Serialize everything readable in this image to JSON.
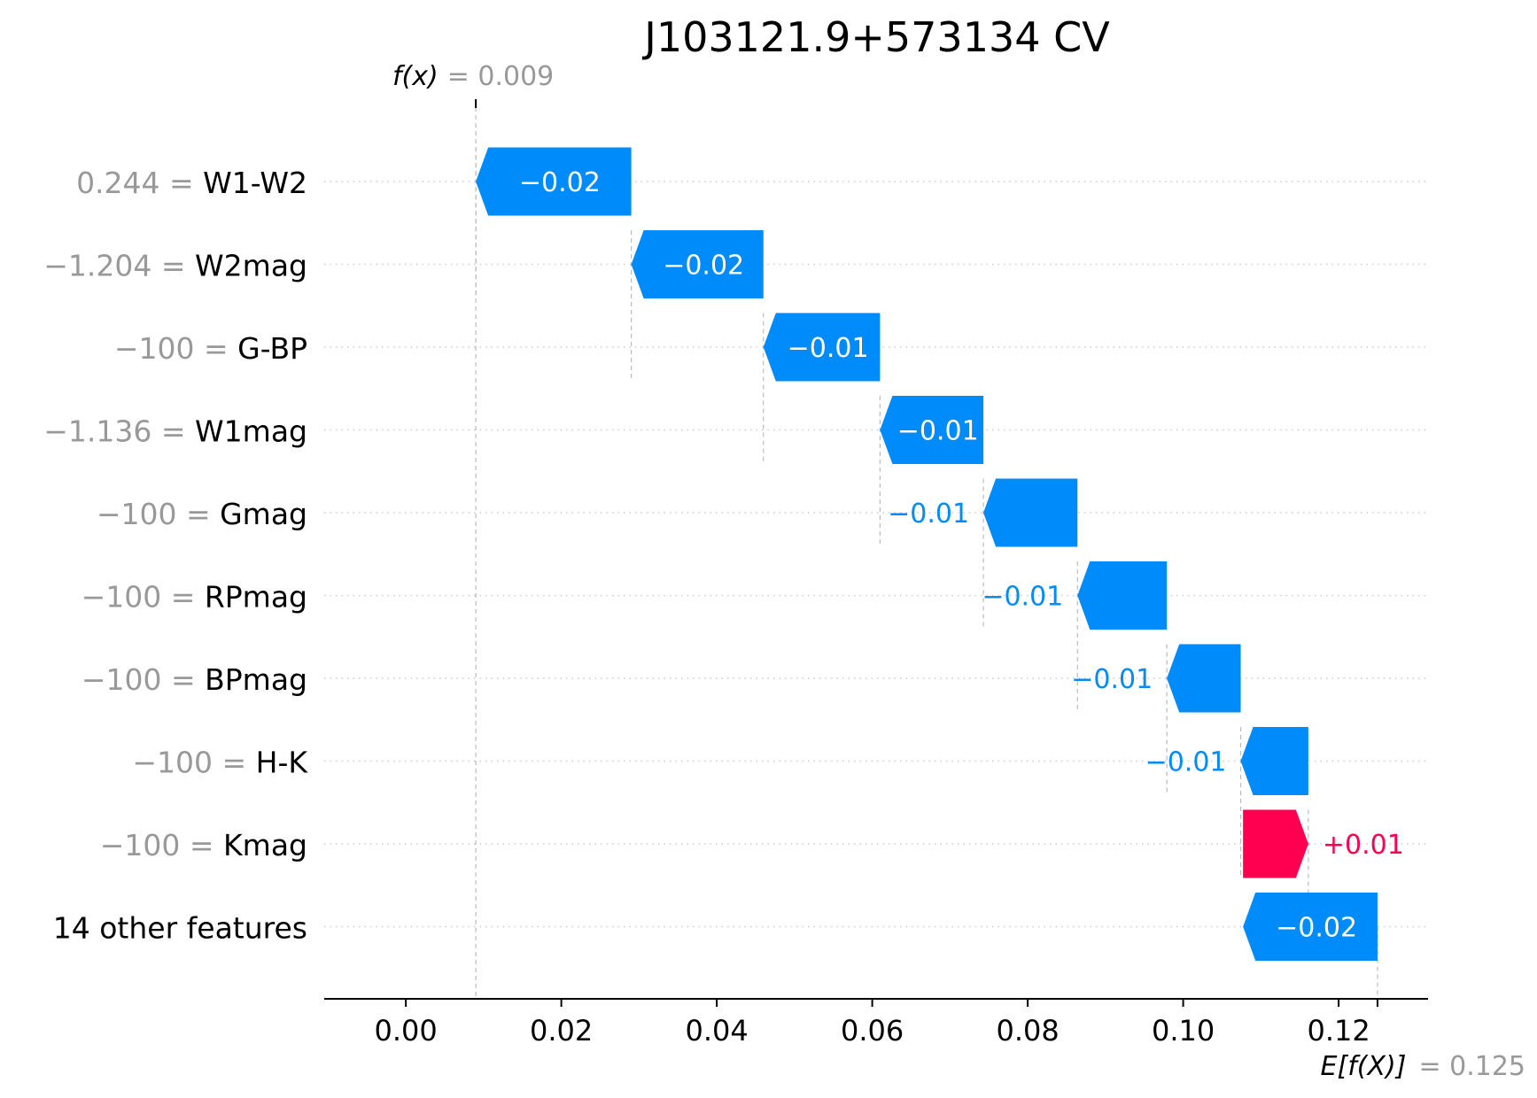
{
  "chart_data": {
    "type": "waterfall",
    "title": "J103121.9+573134 CV",
    "fx_label": "f(x)",
    "fx_eq": "= 0.009",
    "fx_value": 0.009,
    "efx_label": "E[f(X)]",
    "efx_eq": "= 0.125",
    "efx_value": 0.125,
    "xlim": [
      -0.0105,
      0.1315
    ],
    "xticks": [
      0.0,
      0.02,
      0.04,
      0.06,
      0.08,
      0.1,
      0.12
    ],
    "xtick_labels": [
      "0.00",
      "0.02",
      "0.04",
      "0.06",
      "0.08",
      "0.10",
      "0.12"
    ],
    "rows": [
      {
        "value_text": "0.244",
        "feature": "W1-W2",
        "start": 0.029,
        "end": 0.009,
        "label": "−0.02",
        "sign": "neg"
      },
      {
        "value_text": "−1.204",
        "feature": "W2mag",
        "start": 0.046,
        "end": 0.029,
        "label": "−0.02",
        "sign": "neg"
      },
      {
        "value_text": "−100",
        "feature": "G-BP",
        "start": 0.061,
        "end": 0.046,
        "label": "−0.01",
        "sign": "neg"
      },
      {
        "value_text": "−1.136",
        "feature": "W1mag",
        "start": 0.0743,
        "end": 0.061,
        "label": "−0.01",
        "sign": "neg"
      },
      {
        "value_text": "−100",
        "feature": "Gmag",
        "start": 0.0864,
        "end": 0.0743,
        "label": "−0.01",
        "sign": "neg"
      },
      {
        "value_text": "−100",
        "feature": "RPmag",
        "start": 0.0979,
        "end": 0.0864,
        "label": "−0.01",
        "sign": "neg"
      },
      {
        "value_text": "−100",
        "feature": "BPmag",
        "start": 0.1074,
        "end": 0.0979,
        "label": "−0.01",
        "sign": "neg"
      },
      {
        "value_text": "−100",
        "feature": "H-K",
        "start": 0.1161,
        "end": 0.1074,
        "label": "−0.01",
        "sign": "neg"
      },
      {
        "value_text": "−100",
        "feature": "Kmag",
        "start": 0.1077,
        "end": 0.1161,
        "label": "+0.01",
        "sign": "pos"
      },
      {
        "value_text": "",
        "feature": "14 other features",
        "start": 0.125,
        "end": 0.1077,
        "label": "−0.02",
        "sign": "neg"
      }
    ],
    "colors": {
      "negative": "#008bfb",
      "positive": "#ff0051",
      "value_gray": "#999999",
      "text": "#000000"
    },
    "grid": "dotted horizontal row lines"
  }
}
